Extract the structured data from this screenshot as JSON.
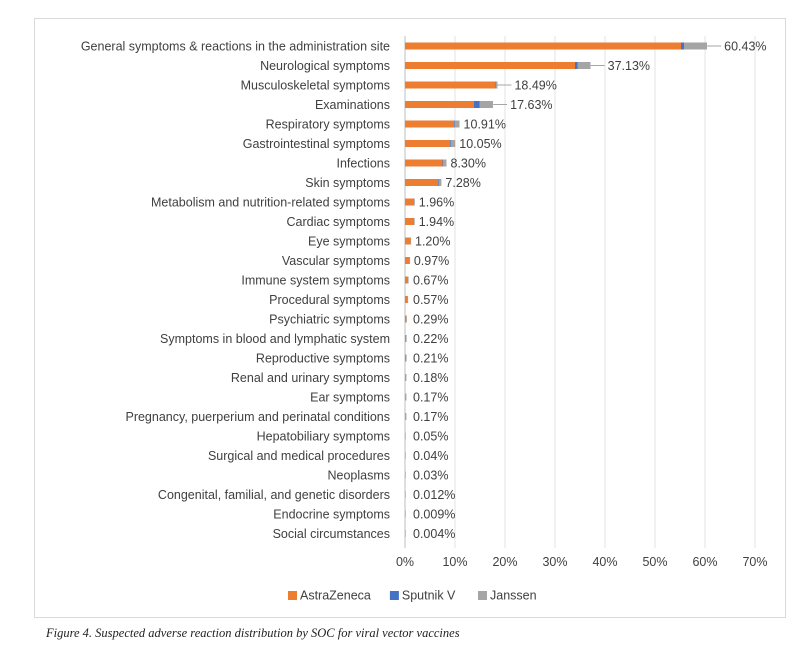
{
  "caption": "Figure 4. Suspected adverse reaction distribution by SOC for viral vector vaccines",
  "chart_data": {
    "type": "bar",
    "orientation": "horizontal",
    "stacked": true,
    "categories": [
      "General symptoms & reactions in the administration site",
      "Neurological symptoms",
      "Musculoskeletal symptoms",
      "Examinations",
      "Respiratory symptoms",
      "Gastrointestinal symptoms",
      "Infections",
      "Skin symptoms",
      "Metabolism and nutrition-related symptoms",
      "Cardiac symptoms",
      "Eye symptoms",
      "Vascular symptoms",
      "Immune system symptoms",
      "Procedural symptoms",
      "Psychiatric symptoms",
      "Symptoms in blood and lymphatic system",
      "Reproductive symptoms",
      "Renal and urinary symptoms",
      "Ear symptoms",
      "Pregnancy, puerperium and perinatal conditions",
      "Hepatobiliary symptoms",
      "Surgical and medical procedures",
      "Neoplasms",
      "Congenital, familial, and genetic disorders",
      "Endocrine symptoms",
      "Social circumstances"
    ],
    "series": [
      {
        "name": "AstraZeneca",
        "color": "#ED7D31",
        "values": [
          55.2,
          34.0,
          18.0,
          13.8,
          9.8,
          9.0,
          7.5,
          6.6,
          1.8,
          1.8,
          1.1,
          0.9,
          0.6,
          0.5,
          0.27,
          0.2,
          0.2,
          0.17,
          0.16,
          0.16,
          0.05,
          0.04,
          0.03,
          0.012,
          0.009,
          0.004
        ]
      },
      {
        "name": "Sputnik V",
        "color": "#4472C4",
        "values": [
          0.6,
          0.5,
          0.1,
          1.1,
          0.1,
          0.1,
          0.1,
          0.1,
          0,
          0,
          0,
          0,
          0,
          0,
          0,
          0,
          0,
          0,
          0,
          0,
          0,
          0,
          0,
          0,
          0,
          0
        ]
      },
      {
        "name": "Janssen",
        "color": "#A5A5A5",
        "values": [
          4.6,
          2.6,
          0.4,
          2.7,
          1.0,
          0.95,
          0.7,
          0.58,
          0.16,
          0.14,
          0.1,
          0.07,
          0.07,
          0.07,
          0.02,
          0.02,
          0.01,
          0.01,
          0.01,
          0.01,
          0,
          0,
          0,
          0,
          0,
          0
        ]
      }
    ],
    "totals": [
      60.43,
      37.13,
      18.49,
      17.63,
      10.91,
      10.05,
      8.3,
      7.28,
      1.96,
      1.94,
      1.2,
      0.97,
      0.67,
      0.57,
      0.29,
      0.22,
      0.21,
      0.18,
      0.17,
      0.17,
      0.05,
      0.04,
      0.03,
      0.012,
      0.009,
      0.004
    ],
    "data_labels": [
      "60.43%",
      "37.13%",
      "18.49%",
      "17.63%",
      "10.91%",
      "10.05%",
      "8.30%",
      "7.28%",
      "1.96%",
      "1.94%",
      "1.20%",
      "0.97%",
      "0.67%",
      "0.57%",
      "0.29%",
      "0.22%",
      "0.21%",
      "0.18%",
      "0.17%",
      "0.17%",
      "0.05%",
      "0.04%",
      "0.03%",
      "0.012%",
      "0.009%",
      "0.004%"
    ],
    "xlim": [
      0,
      70
    ],
    "xticks": [
      0,
      10,
      20,
      30,
      40,
      50,
      60,
      70
    ],
    "xtick_labels": [
      "0%",
      "10%",
      "20%",
      "30%",
      "40%",
      "50%",
      "60%",
      "70%"
    ],
    "grid": "vertical",
    "legend": "bottom",
    "title": "",
    "xlabel": "",
    "ylabel": ""
  }
}
